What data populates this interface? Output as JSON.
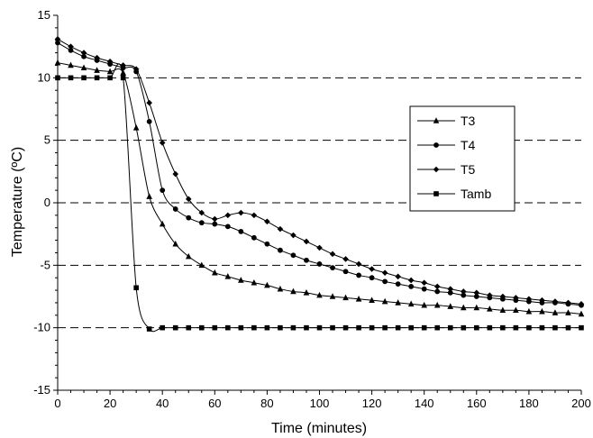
{
  "chart_data": {
    "type": "line",
    "title": "",
    "xlabel": "Time (minutes)",
    "ylabel": "Temperature (ºC)",
    "xlim": [
      0,
      200
    ],
    "ylim": [
      -15,
      15
    ],
    "xticks": [
      "0",
      "20",
      "40",
      "60",
      "80",
      "100",
      "120",
      "140",
      "160",
      "180",
      "200"
    ],
    "yticks": [
      "-15",
      "-10",
      "-5",
      "0",
      "5",
      "10",
      "15"
    ],
    "grid": "dashed horizontal gridlines at -10, -5, 0, 5, 10",
    "legend_position": "right",
    "series": [
      {
        "name": "T3",
        "marker": "triangle",
        "x": [
          0,
          5,
          10,
          15,
          20,
          25,
          30,
          35,
          40,
          45,
          50,
          55,
          60,
          65,
          70,
          75,
          80,
          85,
          90,
          95,
          100,
          105,
          110,
          115,
          120,
          125,
          130,
          135,
          140,
          145,
          150,
          155,
          160,
          165,
          170,
          175,
          180,
          185,
          190,
          195,
          200
        ],
        "y": [
          11.2,
          11.0,
          10.8,
          10.6,
          10.5,
          10.4,
          6.0,
          0.5,
          -1.7,
          -3.3,
          -4.3,
          -5.0,
          -5.6,
          -5.9,
          -6.2,
          -6.4,
          -6.6,
          -6.9,
          -7.1,
          -7.2,
          -7.4,
          -7.5,
          -7.6,
          -7.7,
          -7.8,
          -7.9,
          -8.0,
          -8.1,
          -8.2,
          -8.2,
          -8.3,
          -8.4,
          -8.4,
          -8.5,
          -8.6,
          -8.6,
          -8.7,
          -8.7,
          -8.8,
          -8.8,
          -8.9
        ]
      },
      {
        "name": "T4",
        "marker": "circle",
        "x": [
          0,
          5,
          10,
          15,
          20,
          25,
          30,
          35,
          40,
          45,
          50,
          55,
          60,
          65,
          70,
          75,
          80,
          85,
          90,
          95,
          100,
          105,
          110,
          115,
          120,
          125,
          130,
          135,
          140,
          145,
          150,
          155,
          160,
          165,
          170,
          175,
          180,
          185,
          190,
          195,
          200
        ],
        "y": [
          12.8,
          12.2,
          11.7,
          11.4,
          11.1,
          10.8,
          10.5,
          6.5,
          1.0,
          -0.5,
          -1.2,
          -1.6,
          -1.7,
          -1.9,
          -2.3,
          -2.8,
          -3.3,
          -3.8,
          -4.2,
          -4.6,
          -4.9,
          -5.2,
          -5.5,
          -5.8,
          -6.0,
          -6.3,
          -6.5,
          -6.7,
          -6.9,
          -7.1,
          -7.2,
          -7.4,
          -7.5,
          -7.6,
          -7.7,
          -7.8,
          -7.9,
          -8.0,
          -8.0,
          -8.1,
          -8.2
        ]
      },
      {
        "name": "T5",
        "marker": "diamond",
        "x": [
          0,
          5,
          10,
          15,
          20,
          25,
          30,
          35,
          40,
          45,
          50,
          55,
          60,
          65,
          70,
          75,
          80,
          85,
          90,
          95,
          100,
          105,
          110,
          115,
          120,
          125,
          130,
          135,
          140,
          145,
          150,
          155,
          160,
          165,
          170,
          175,
          180,
          185,
          190,
          195,
          200
        ],
        "y": [
          13.1,
          12.5,
          12.0,
          11.6,
          11.3,
          11.0,
          10.7,
          8.0,
          4.8,
          2.3,
          0.3,
          -0.8,
          -1.3,
          -1.0,
          -0.8,
          -1.0,
          -1.5,
          -2.1,
          -2.6,
          -3.1,
          -3.6,
          -4.1,
          -4.5,
          -4.9,
          -5.3,
          -5.6,
          -5.9,
          -6.2,
          -6.4,
          -6.7,
          -6.9,
          -7.1,
          -7.2,
          -7.4,
          -7.5,
          -7.6,
          -7.7,
          -7.8,
          -7.9,
          -8.0,
          -8.1
        ]
      },
      {
        "name": "Tamb",
        "marker": "square",
        "x": [
          0,
          5,
          10,
          15,
          20,
          25,
          30,
          35,
          40,
          45,
          50,
          55,
          60,
          65,
          70,
          75,
          80,
          85,
          90,
          95,
          100,
          105,
          110,
          115,
          120,
          125,
          130,
          135,
          140,
          145,
          150,
          155,
          160,
          165,
          170,
          175,
          180,
          185,
          190,
          195,
          200
        ],
        "y": [
          10.0,
          10.0,
          10.0,
          10.0,
          10.0,
          10.0,
          -6.8,
          -10.1,
          -10.0,
          -10.0,
          -10.0,
          -10.0,
          -10.0,
          -10.0,
          -10.0,
          -10.0,
          -10.0,
          -10.0,
          -10.0,
          -10.0,
          -10.0,
          -10.0,
          -10.0,
          -10.0,
          -10.0,
          -10.0,
          -10.0,
          -10.0,
          -10.0,
          -10.0,
          -10.0,
          -10.0,
          -10.0,
          -10.0,
          -10.0,
          -10.0,
          -10.0,
          -10.0,
          -10.0,
          -10.0,
          -10.0
        ]
      }
    ]
  }
}
